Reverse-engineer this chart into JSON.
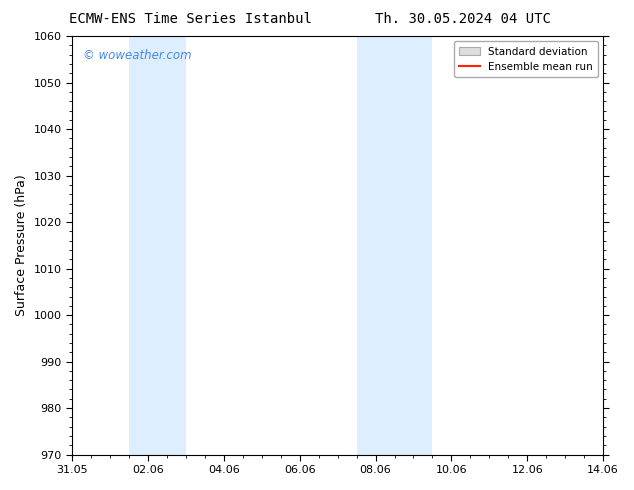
{
  "title_left": "ECMW-ENS Time Series Istanbul",
  "title_right": "Th. 30.05.2024 04 UTC",
  "ylabel": "Surface Pressure (hPa)",
  "ylim": [
    970,
    1060
  ],
  "yticks": [
    970,
    980,
    990,
    1000,
    1010,
    1020,
    1030,
    1040,
    1050,
    1060
  ],
  "xlabel": "",
  "background_color": "#ffffff",
  "plot_bg_color": "#ffffff",
  "watermark_text": "© woweather.com",
  "watermark_color": "#4488ee",
  "shaded_regions": [
    {
      "x_start_days": 1.5,
      "x_end_days": 3.0,
      "color": "#ddeeff"
    },
    {
      "x_start_days": 7.5,
      "x_end_days": 9.5,
      "color": "#ddeeff"
    }
  ],
  "legend_std_label": "Standard deviation",
  "legend_mean_label": "Ensemble mean run",
  "legend_std_color": "#dddddd",
  "legend_mean_color": "#ff2200",
  "xtick_dates": [
    "31.05",
    "02.06",
    "04.06",
    "06.06",
    "08.06",
    "10.06",
    "12.06",
    "14.06"
  ],
  "xtick_days_offset": [
    0,
    2,
    4,
    6,
    8,
    10,
    12,
    14
  ],
  "title_fontsize": 10,
  "tick_fontsize": 8,
  "ylabel_fontsize": 9,
  "spine_color": "#000000",
  "tick_color": "#000000"
}
